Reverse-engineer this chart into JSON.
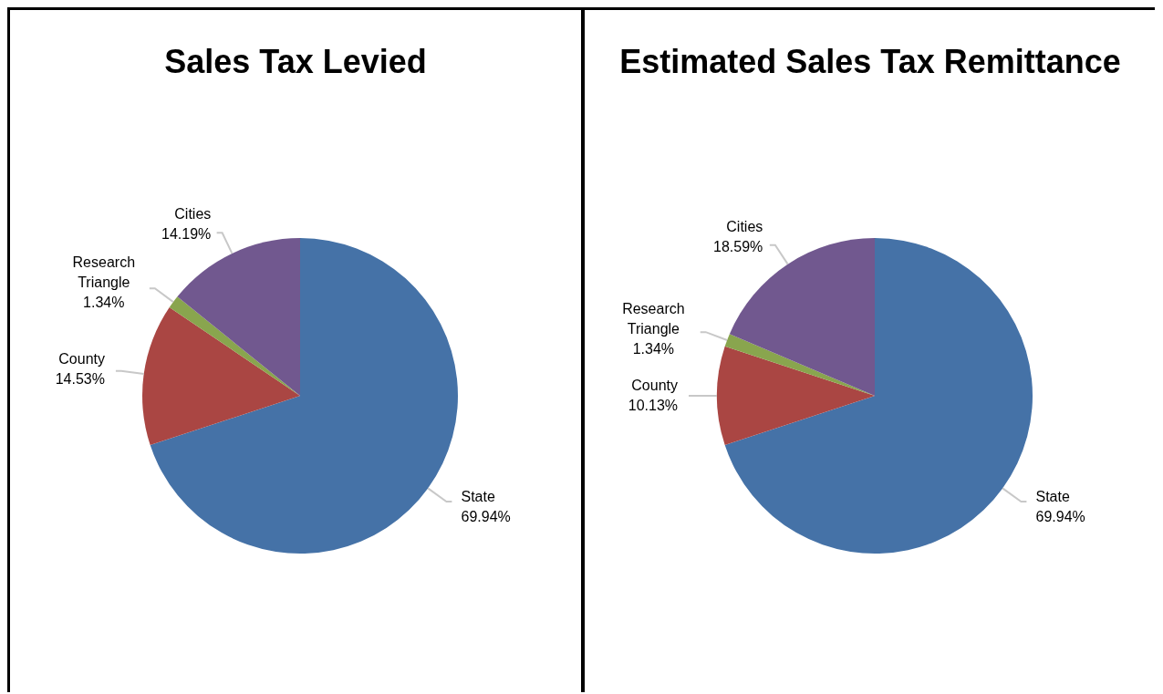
{
  "chart_data": [
    {
      "type": "pie",
      "title": "Sales Tax Levied",
      "categories": [
        "State",
        "County",
        "Research Triangle",
        "Cities"
      ],
      "values": [
        69.94,
        14.53,
        1.34,
        14.19
      ],
      "value_labels": [
        "69.94%",
        "14.53%",
        "1.34%",
        "14.19%"
      ],
      "colors": [
        "#4572a7",
        "#aa4643",
        "#89a54e",
        "#71588f"
      ],
      "legend": false
    },
    {
      "type": "pie",
      "title": "Estimated Sales Tax Remittance",
      "categories": [
        "State",
        "County",
        "Research Triangle",
        "Cities"
      ],
      "values": [
        69.94,
        10.13,
        1.34,
        18.59
      ],
      "value_labels": [
        "69.94%",
        "10.13%",
        "1.34%",
        "18.59%"
      ],
      "colors": [
        "#4572a7",
        "#aa4643",
        "#89a54e",
        "#71588f"
      ],
      "legend": false
    }
  ]
}
